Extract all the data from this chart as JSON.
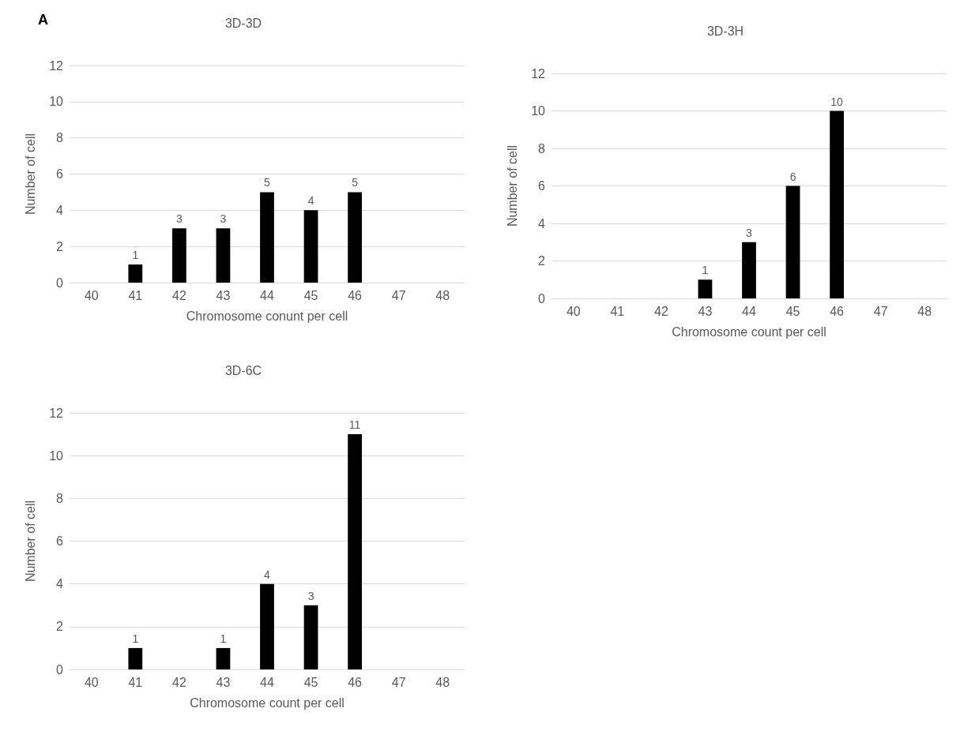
{
  "chart_data": [
    {
      "type": "bar",
      "title": "3D-3D",
      "xlabel": "Chromosome conunt per cell",
      "ylabel": "Number of cell",
      "annotations": [
        "A"
      ],
      "categories": [
        "40",
        "41",
        "42",
        "43",
        "44",
        "45",
        "46",
        "47",
        "48"
      ],
      "series": [
        {
          "color": "#000000",
          "values": [
            0,
            1,
            3,
            3,
            5,
            4,
            5,
            0,
            0
          ],
          "value_labels": [
            null,
            "1",
            "3",
            "3",
            "5",
            "4",
            "5",
            null,
            null
          ]
        }
      ],
      "ylim": [
        0,
        12
      ],
      "yticks": [
        0,
        2,
        4,
        6,
        8,
        10,
        12
      ],
      "grid": "y"
    },
    {
      "type": "bar",
      "title": "3D-3H",
      "xlabel": "Chromosome count per cell",
      "ylabel": "Number of cell",
      "categories": [
        "40",
        "41",
        "42",
        "43",
        "44",
        "45",
        "46",
        "47",
        "48"
      ],
      "series": [
        {
          "color": "#000000",
          "values": [
            0,
            0,
            0,
            1,
            3,
            6,
            10,
            0,
            0
          ],
          "value_labels": [
            null,
            null,
            null,
            "1",
            "3",
            "6",
            "10",
            null,
            null
          ]
        }
      ],
      "ylim": [
        0,
        12
      ],
      "yticks": [
        0,
        2,
        4,
        6,
        8,
        10,
        12
      ],
      "grid": "y"
    },
    {
      "type": "bar",
      "title": "3D-6C",
      "xlabel": "Chromosome count per cell",
      "ylabel": "Number of cell",
      "categories": [
        "40",
        "41",
        "42",
        "43",
        "44",
        "45",
        "46",
        "47",
        "48"
      ],
      "series": [
        {
          "color": "#000000",
          "values": [
            0,
            1,
            0,
            1,
            4,
            3,
            11,
            0,
            0
          ],
          "value_labels": [
            null,
            "1",
            null,
            "1",
            "4",
            "3",
            "11",
            null,
            null
          ]
        }
      ],
      "ylim": [
        0,
        12
      ],
      "yticks": [
        0,
        2,
        4,
        6,
        8,
        10,
        12
      ],
      "grid": "y"
    }
  ]
}
